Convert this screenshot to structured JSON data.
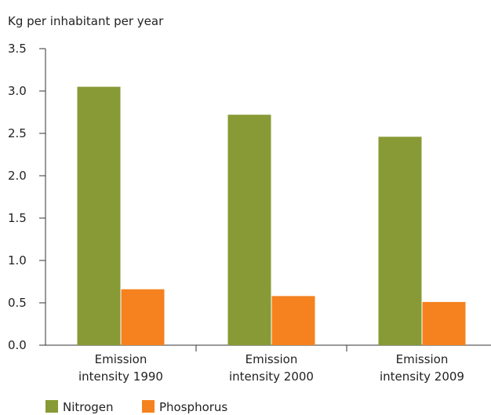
{
  "chart_data": {
    "type": "bar",
    "ylabel": "Kg per inhabitant per year",
    "categories": [
      [
        "Emission",
        "intensity 1990"
      ],
      [
        "Emission",
        "intensity 2000"
      ],
      [
        "Emission",
        "intensity 2009"
      ]
    ],
    "series": [
      {
        "name": "Nitrogen",
        "color": "#879A35",
        "values": [
          3.05,
          2.72,
          2.46
        ]
      },
      {
        "name": "Phosphorus",
        "color": "#F5821F",
        "values": [
          0.66,
          0.58,
          0.51
        ]
      }
    ],
    "ylim": [
      0,
      3.5
    ],
    "yticks": [
      "0.0",
      "0.5",
      "1.0",
      "1.5",
      "2.0",
      "2.5",
      "3.0",
      "3.5"
    ],
    "grid": false,
    "legend_position": "bottom-left"
  }
}
